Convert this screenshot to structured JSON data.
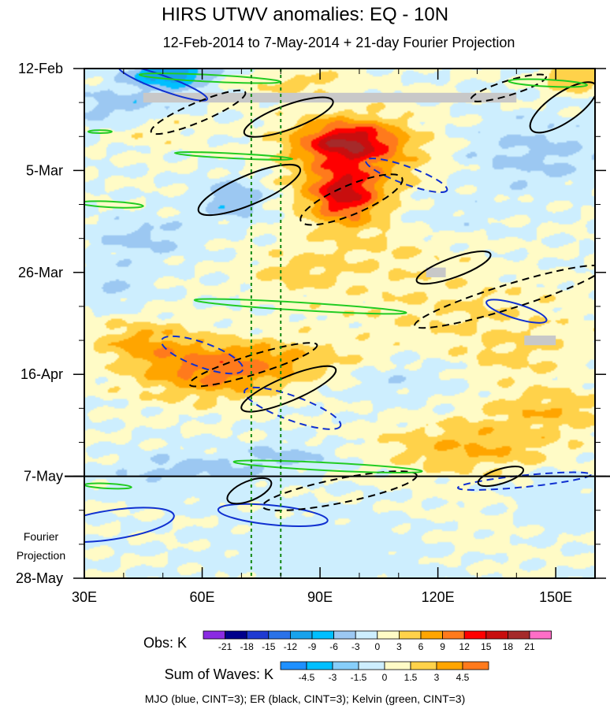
{
  "chart_data": {
    "type": "heatmap",
    "title": "HIRS UTWV anomalies: EQ - 10N",
    "subtitle": "12-Feb-2014 to 7-May-2014 + 21-day Fourier Projection",
    "x_axis": {
      "range": [
        30,
        160
      ],
      "ticks": [
        30,
        60,
        90,
        120,
        150
      ],
      "tick_labels": [
        "30E",
        "60E",
        "90E",
        "120E",
        "150E"
      ],
      "minor_ticks": [
        40,
        50,
        70,
        80,
        100,
        110,
        130,
        140
      ]
    },
    "y_axis": {
      "range_days": [
        0,
        105
      ],
      "ticks_days": [
        0,
        21,
        42,
        63,
        84,
        105
      ],
      "tick_labels": [
        "12-Feb",
        "5-Mar",
        "26-Mar",
        "16-Apr",
        "7-May",
        "28-May"
      ],
      "minor_ticks_days": [
        7,
        14,
        28,
        35,
        49,
        56,
        70,
        77,
        91,
        98
      ]
    },
    "observation_end_day": 84,
    "projection_label": [
      "Fourier",
      "Projection"
    ],
    "reference_longitudes": [
      72.5,
      80
    ],
    "missing_data": [
      {
        "lon": [
          45,
          140
        ],
        "day": [
          5,
          7
        ]
      },
      {
        "lon": [
          117,
          122
        ],
        "day": [
          41,
          43
        ]
      },
      {
        "lon": [
          142,
          150
        ],
        "day": [
          55,
          57
        ]
      }
    ],
    "anomaly_centers": [
      {
        "lon": 97,
        "day": 15,
        "value": 14,
        "sx": 9,
        "sy": 3
      },
      {
        "lon": 96,
        "day": 26,
        "value": 13,
        "sx": 6,
        "sy": 4
      },
      {
        "lon": 100,
        "day": 20,
        "value": 6,
        "sx": 14,
        "sy": 7
      },
      {
        "lon": 62,
        "day": 63,
        "value": 8,
        "sx": 14,
        "sy": 4
      },
      {
        "lon": 78,
        "day": 60,
        "value": 5,
        "sx": 20,
        "sy": 3
      },
      {
        "lon": 45,
        "day": 56,
        "value": 6,
        "sx": 9,
        "sy": 3
      },
      {
        "lon": 130,
        "day": 78,
        "value": 6,
        "sx": 18,
        "sy": 4
      },
      {
        "lon": 148,
        "day": 70,
        "value": 5,
        "sx": 12,
        "sy": 3
      },
      {
        "lon": 137,
        "day": 60,
        "value": 4,
        "sx": 12,
        "sy": 4
      },
      {
        "lon": 125,
        "day": 50,
        "value": 3,
        "sx": 25,
        "sy": 5
      },
      {
        "lon": 108,
        "day": 37,
        "value": 3,
        "sx": 15,
        "sy": 5
      },
      {
        "lon": 84,
        "day": 42,
        "value": 4,
        "sx": 8,
        "sy": 3
      },
      {
        "lon": 85,
        "day": 3,
        "value": 4,
        "sx": 10,
        "sy": 2
      },
      {
        "lon": 48,
        "day": 12,
        "value": 3,
        "sx": 8,
        "sy": 3
      },
      {
        "lon": 155,
        "day": 2,
        "value": 6,
        "sx": 6,
        "sy": 2
      },
      {
        "lon": 140,
        "day": 95,
        "value": 2,
        "sx": 20,
        "sy": 6
      },
      {
        "lon": 52,
        "day": 1,
        "value": -12,
        "sx": 7,
        "sy": 2
      },
      {
        "lon": 40,
        "day": 8,
        "value": -5,
        "sx": 10,
        "sy": 3
      },
      {
        "lon": 68,
        "day": 27,
        "value": -6,
        "sx": 6,
        "sy": 3
      },
      {
        "lon": 45,
        "day": 35,
        "value": -4,
        "sx": 9,
        "sy": 3
      },
      {
        "lon": 55,
        "day": 84,
        "value": -5,
        "sx": 12,
        "sy": 3
      },
      {
        "lon": 145,
        "day": 18,
        "value": -4,
        "sx": 14,
        "sy": 5
      },
      {
        "lon": 150,
        "day": 90,
        "value": -4,
        "sx": 9,
        "sy": 6
      },
      {
        "lon": 95,
        "day": 100,
        "value": -3,
        "sx": 20,
        "sy": 6
      },
      {
        "lon": 82,
        "day": 80,
        "value": -4,
        "sx": 10,
        "sy": 2
      },
      {
        "lon": 120,
        "day": 30,
        "value": -3,
        "sx": 10,
        "sy": 4
      },
      {
        "lon": 115,
        "day": 63,
        "value": -3,
        "sx": 15,
        "sy": 4
      },
      {
        "lon": 38,
        "day": 45,
        "value": -3,
        "sx": 6,
        "sy": 3
      }
    ],
    "wave_contours": [
      {
        "wave": "MJO",
        "style": "solid",
        "lon": 50,
        "day": 3,
        "rx": 12,
        "ry": 1.5,
        "angle": 0.35
      },
      {
        "wave": "MJO",
        "style": "solid",
        "lon": 37,
        "day": 94,
        "rx": 16,
        "ry": 3,
        "angle": -0.15
      },
      {
        "wave": "MJO",
        "style": "solid",
        "lon": 78,
        "day": 92,
        "rx": 14,
        "ry": 2,
        "angle": 0.1
      },
      {
        "wave": "MJO",
        "style": "solid",
        "lon": 140,
        "day": 50,
        "rx": 8,
        "ry": 1.5,
        "angle": 0.3
      },
      {
        "wave": "MJO",
        "style": "dashed",
        "lon": 112,
        "day": 22,
        "rx": 11,
        "ry": 1.8,
        "angle": 0.35
      },
      {
        "wave": "MJO",
        "style": "dashed",
        "lon": 60,
        "day": 59,
        "rx": 11,
        "ry": 2.5,
        "angle": 0.35
      },
      {
        "wave": "MJO",
        "style": "dashed",
        "lon": 83,
        "day": 70,
        "rx": 13,
        "ry": 2.5,
        "angle": 0.35
      },
      {
        "wave": "MJO",
        "style": "dashed",
        "lon": 142,
        "day": 85,
        "rx": 17,
        "ry": 1.2,
        "angle": -0.1
      },
      {
        "wave": "ER",
        "style": "dashed",
        "lon": 59,
        "day": 9,
        "rx": 13,
        "ry": 2,
        "angle": -0.4
      },
      {
        "wave": "ER",
        "style": "solid",
        "lon": 82,
        "day": 10,
        "rx": 12,
        "ry": 2.5,
        "angle": -0.35
      },
      {
        "wave": "ER",
        "style": "solid",
        "lon": 152,
        "day": 8,
        "rx": 10,
        "ry": 3,
        "angle": -0.6
      },
      {
        "wave": "ER",
        "style": "dashed",
        "lon": 138,
        "day": 4,
        "rx": 10,
        "ry": 1.5,
        "angle": -0.3
      },
      {
        "wave": "ER",
        "style": "solid",
        "lon": 72,
        "day": 25,
        "rx": 14,
        "ry": 3,
        "angle": -0.4
      },
      {
        "wave": "ER",
        "style": "dashed",
        "lon": 98,
        "day": 27,
        "rx": 14,
        "ry": 3,
        "angle": -0.4
      },
      {
        "wave": "ER",
        "style": "solid",
        "lon": 124,
        "day": 41,
        "rx": 10,
        "ry": 2,
        "angle": -0.35
      },
      {
        "wave": "ER",
        "style": "dashed",
        "lon": 138,
        "day": 47,
        "rx": 25,
        "ry": 2.5,
        "angle": -0.3
      },
      {
        "wave": "ER",
        "style": "dashed",
        "lon": 73,
        "day": 61,
        "rx": 17,
        "ry": 2,
        "angle": -0.3
      },
      {
        "wave": "ER",
        "style": "solid",
        "lon": 82,
        "day": 66,
        "rx": 13,
        "ry": 2.5,
        "angle": -0.4
      },
      {
        "wave": "ER",
        "style": "solid",
        "lon": 72,
        "day": 87,
        "rx": 6,
        "ry": 2,
        "angle": -0.4
      },
      {
        "wave": "ER",
        "style": "dashed",
        "lon": 95,
        "day": 87,
        "rx": 20,
        "ry": 2.5,
        "angle": -0.2
      },
      {
        "wave": "ER",
        "style": "solid",
        "lon": 136,
        "day": 84,
        "rx": 6,
        "ry": 1.5,
        "angle": -0.3
      },
      {
        "wave": "Kelvin",
        "style": "solid",
        "lon": 62,
        "day": 2,
        "rx": 18,
        "ry": 0.7,
        "angle": 0.05
      },
      {
        "wave": "Kelvin",
        "style": "solid",
        "lon": 148,
        "day": 3,
        "rx": 10,
        "ry": 0.7,
        "angle": 0.05
      },
      {
        "wave": "Kelvin",
        "style": "solid",
        "lon": 34,
        "day": 13,
        "rx": 3,
        "ry": 0.3,
        "angle": 0
      },
      {
        "wave": "Kelvin",
        "style": "solid",
        "lon": 68,
        "day": 18,
        "rx": 15,
        "ry": 0.5,
        "angle": 0.05
      },
      {
        "wave": "Kelvin",
        "style": "solid",
        "lon": 37,
        "day": 28,
        "rx": 8,
        "ry": 0.6,
        "angle": 0.05
      },
      {
        "wave": "Kelvin",
        "style": "solid",
        "lon": 85,
        "day": 49,
        "rx": 27,
        "ry": 0.8,
        "angle": 0.06
      },
      {
        "wave": "Kelvin",
        "style": "solid",
        "lon": 92,
        "day": 82,
        "rx": 24,
        "ry": 0.8,
        "angle": 0.05
      },
      {
        "wave": "Kelvin",
        "style": "solid",
        "lon": 36,
        "day": 86,
        "rx": 6,
        "ry": 0.5,
        "angle": 0.05
      }
    ],
    "obs_colorbar": {
      "title": "Obs: K",
      "tick_labels": [
        "-21",
        "-18",
        "-15",
        "-12",
        "-9",
        "-6",
        "-3",
        "0",
        "3",
        "6",
        "9",
        "12",
        "15",
        "18",
        "21"
      ],
      "colors": [
        "#8a2be2",
        "#00008b",
        "#1e3ad2",
        "#2a72e8",
        "#17a2ec",
        "#00bfff",
        "#9cc8f2",
        "#cdeefe",
        "#fffbc6",
        "#ffd24a",
        "#ffa500",
        "#ff7a1c",
        "#ff0000",
        "#c80e0e",
        "#a52a2a",
        "#ff6ec7"
      ]
    },
    "waves_colorbar": {
      "title": "Sum of Waves: K",
      "tick_labels": [
        "-4.5",
        "-3",
        "-1.5",
        "0",
        "1.5",
        "3",
        "4.5"
      ],
      "colors": [
        "#1e90ff",
        "#00bfff",
        "#87cefa",
        "#cdeefe",
        "#fffbc6",
        "#ffd24a",
        "#ffa500",
        "#ff7a1c"
      ]
    },
    "legend_caption": "MJO (blue, CINT=3); ER (black, CINT=3); Kelvin (green, CINT=3)",
    "wave_colors": {
      "MJO": "#1030d0",
      "ER": "#000000",
      "Kelvin": "#22cc22"
    },
    "reference_line_color": "#118811",
    "missing_color": "#c8c8c8"
  }
}
